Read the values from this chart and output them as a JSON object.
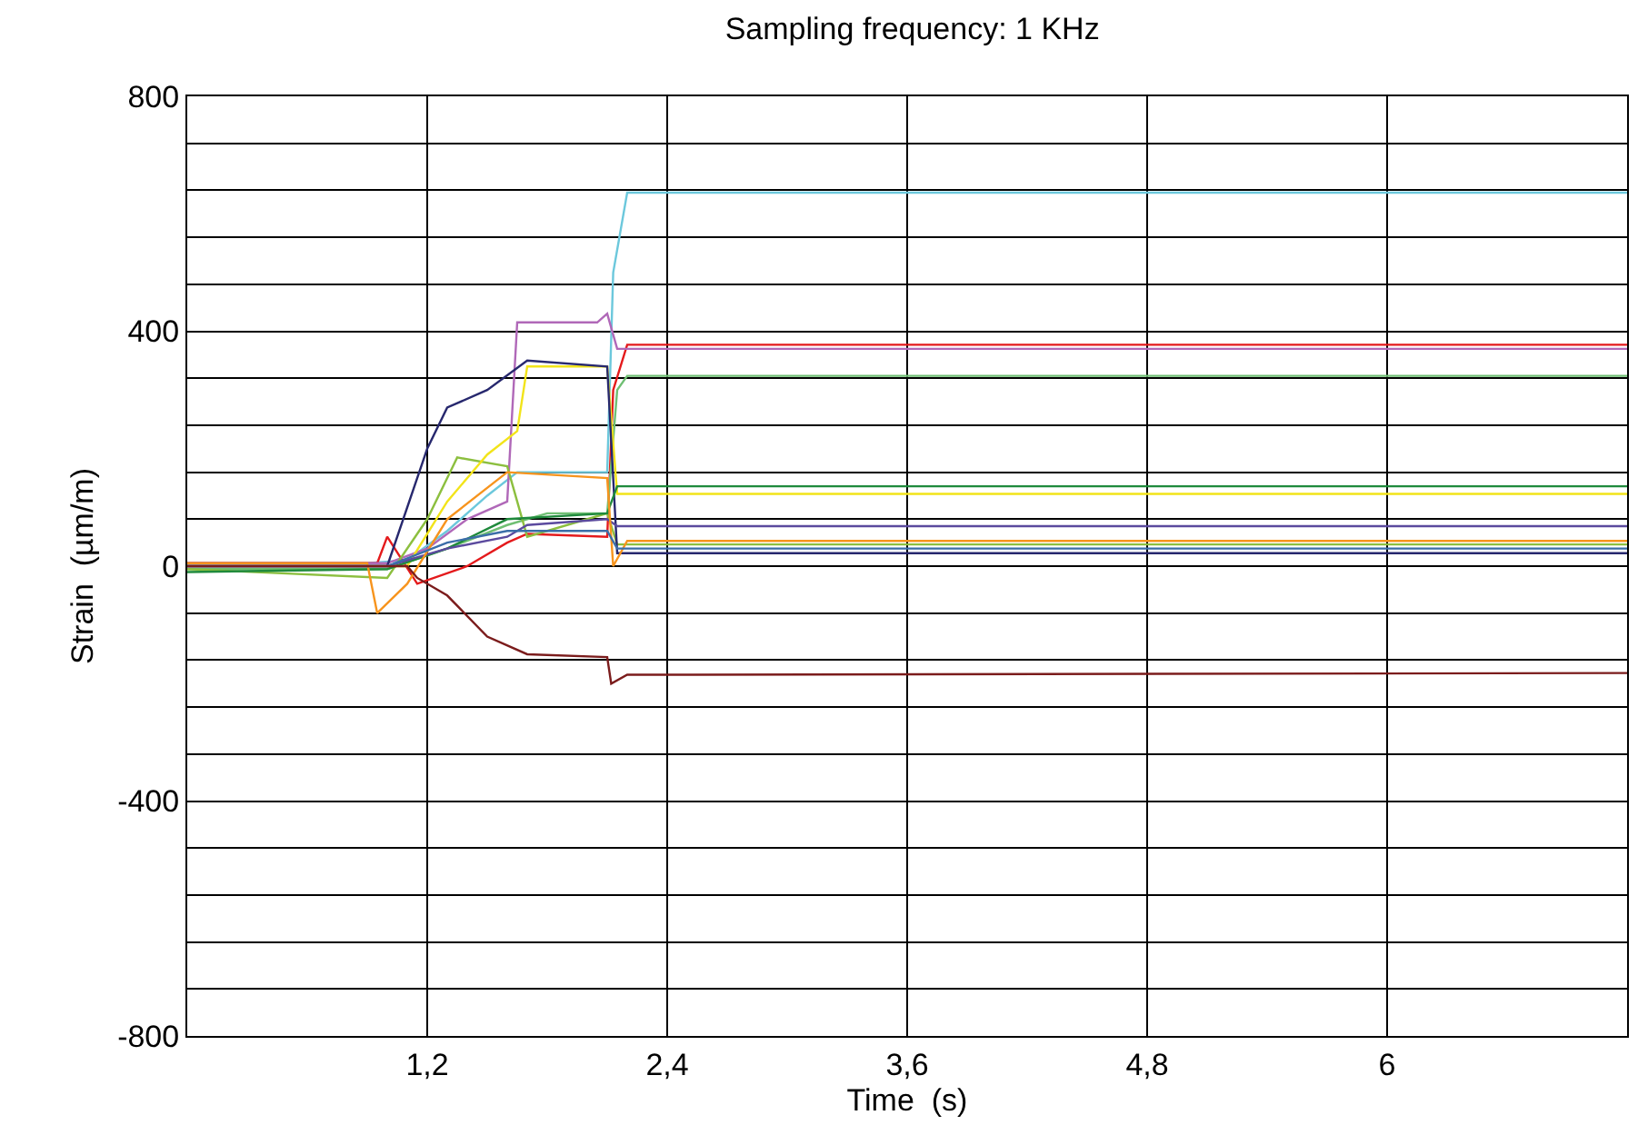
{
  "chart_data": {
    "type": "line",
    "title": "Sampling frequency: 1 KHz",
    "xlabel": "Time  (s)",
    "ylabel": "Strain  (µm/m)",
    "xlim": [
      0,
      7.2
    ],
    "ylim": [
      -800,
      800
    ],
    "xticks": [
      {
        "value": 0,
        "label": null
      },
      {
        "value": 1.2,
        "label": "1,2"
      },
      {
        "value": 2.4,
        "label": "2,4"
      },
      {
        "value": 3.6,
        "label": "3,6"
      },
      {
        "value": 4.8,
        "label": "4,8"
      },
      {
        "value": 6,
        "label": "6"
      },
      {
        "value": 7.2,
        "label": null
      }
    ],
    "yticks": [
      -800,
      {
        "value": -720,
        "label": null
      },
      {
        "value": -640,
        "label": null
      },
      {
        "value": -560,
        "label": null
      },
      {
        "value": -480,
        "label": null
      },
      -400,
      {
        "value": -320,
        "label": null
      },
      {
        "value": -240,
        "label": null
      },
      {
        "value": -160,
        "label": null
      },
      {
        "value": -80,
        "label": null
      },
      0,
      {
        "value": 80,
        "label": null
      },
      {
        "value": 160,
        "label": null
      },
      {
        "value": 240,
        "label": null
      },
      {
        "value": 320,
        "label": null
      },
      400,
      {
        "value": 480,
        "label": null
      },
      {
        "value": 560,
        "label": null
      },
      {
        "value": 640,
        "label": null
      },
      {
        "value": 720,
        "label": null
      },
      800
    ],
    "grid": true,
    "marker": "none",
    "line_style": "solid",
    "series": [
      {
        "color": "#6cc8dc",
        "x": [
          0,
          0.9,
          1.1,
          1.3,
          1.5,
          1.65,
          2.1,
          2.13,
          2.2,
          7.2
        ],
        "values": [
          5,
          5,
          10,
          60,
          120,
          160,
          160,
          500,
          636,
          636
        ]
      },
      {
        "color": "#e41a1c",
        "x": [
          0,
          0.95,
          1.0,
          1.15,
          1.4,
          1.6,
          1.7,
          2.1,
          2.13,
          2.2,
          7.2
        ],
        "values": [
          5,
          5,
          50,
          -30,
          0,
          40,
          55,
          50,
          300,
          377,
          377
        ]
      },
      {
        "color": "#b068b8",
        "x": [
          0,
          1.0,
          1.2,
          1.4,
          1.6,
          1.65,
          2.05,
          2.1,
          2.15,
          7.2
        ],
        "values": [
          5,
          5,
          30,
          80,
          110,
          415,
          415,
          430,
          370,
          370
        ]
      },
      {
        "color": "#6fbf73",
        "x": [
          0,
          1.0,
          1.3,
          1.6,
          1.8,
          2.1,
          2.15,
          2.2,
          7.2
        ],
        "values": [
          -5,
          -5,
          30,
          70,
          90,
          90,
          300,
          324,
          324
        ]
      },
      {
        "color": "#8cbf3f",
        "x": [
          0,
          1.0,
          1.2,
          1.35,
          1.6,
          1.7,
          2.1,
          2.15,
          7.2
        ],
        "values": [
          -5,
          -20,
          80,
          185,
          170,
          50,
          90,
          37,
          37
        ]
      },
      {
        "color": "#f2e41a",
        "x": [
          0,
          1.1,
          1.3,
          1.5,
          1.65,
          1.7,
          2.1,
          2.15,
          7.2
        ],
        "values": [
          0,
          0,
          110,
          190,
          230,
          340,
          340,
          123,
          123
        ]
      },
      {
        "color": "#27286e",
        "x": [
          0,
          1.0,
          1.2,
          1.3,
          1.5,
          1.7,
          2.1,
          2.15,
          7.2
        ],
        "values": [
          0,
          0,
          200,
          270,
          300,
          350,
          340,
          22,
          22
        ]
      },
      {
        "color": "#1f8a3c",
        "x": [
          0,
          1.0,
          1.3,
          1.6,
          2.1,
          2.15,
          7.2
        ],
        "values": [
          -10,
          -5,
          30,
          80,
          90,
          136,
          136
        ]
      },
      {
        "color": "#5b4a9e",
        "x": [
          0,
          1.0,
          1.3,
          1.6,
          1.7,
          2.1,
          2.15,
          7.2
        ],
        "values": [
          0,
          0,
          30,
          50,
          70,
          80,
          68,
          68
        ]
      },
      {
        "color": "#f7941d",
        "x": [
          0,
          0.9,
          0.95,
          1.1,
          1.3,
          1.6,
          2.1,
          2.13,
          2.2,
          7.2
        ],
        "values": [
          5,
          5,
          -80,
          -30,
          80,
          160,
          150,
          0,
          43,
          43
        ]
      },
      {
        "color": "#3b6ea8",
        "x": [
          0,
          1.0,
          1.3,
          1.6,
          2.1,
          2.15,
          7.2
        ],
        "values": [
          0,
          0,
          40,
          60,
          60,
          30,
          30
        ]
      },
      {
        "color": "#7b1c1c",
        "x": [
          0,
          1.1,
          1.15,
          1.3,
          1.5,
          1.7,
          2.1,
          2.12,
          2.2,
          7.2
        ],
        "values": [
          0,
          0,
          -20,
          -50,
          -120,
          -150,
          -155,
          -200,
          -185,
          -182
        ]
      }
    ]
  }
}
